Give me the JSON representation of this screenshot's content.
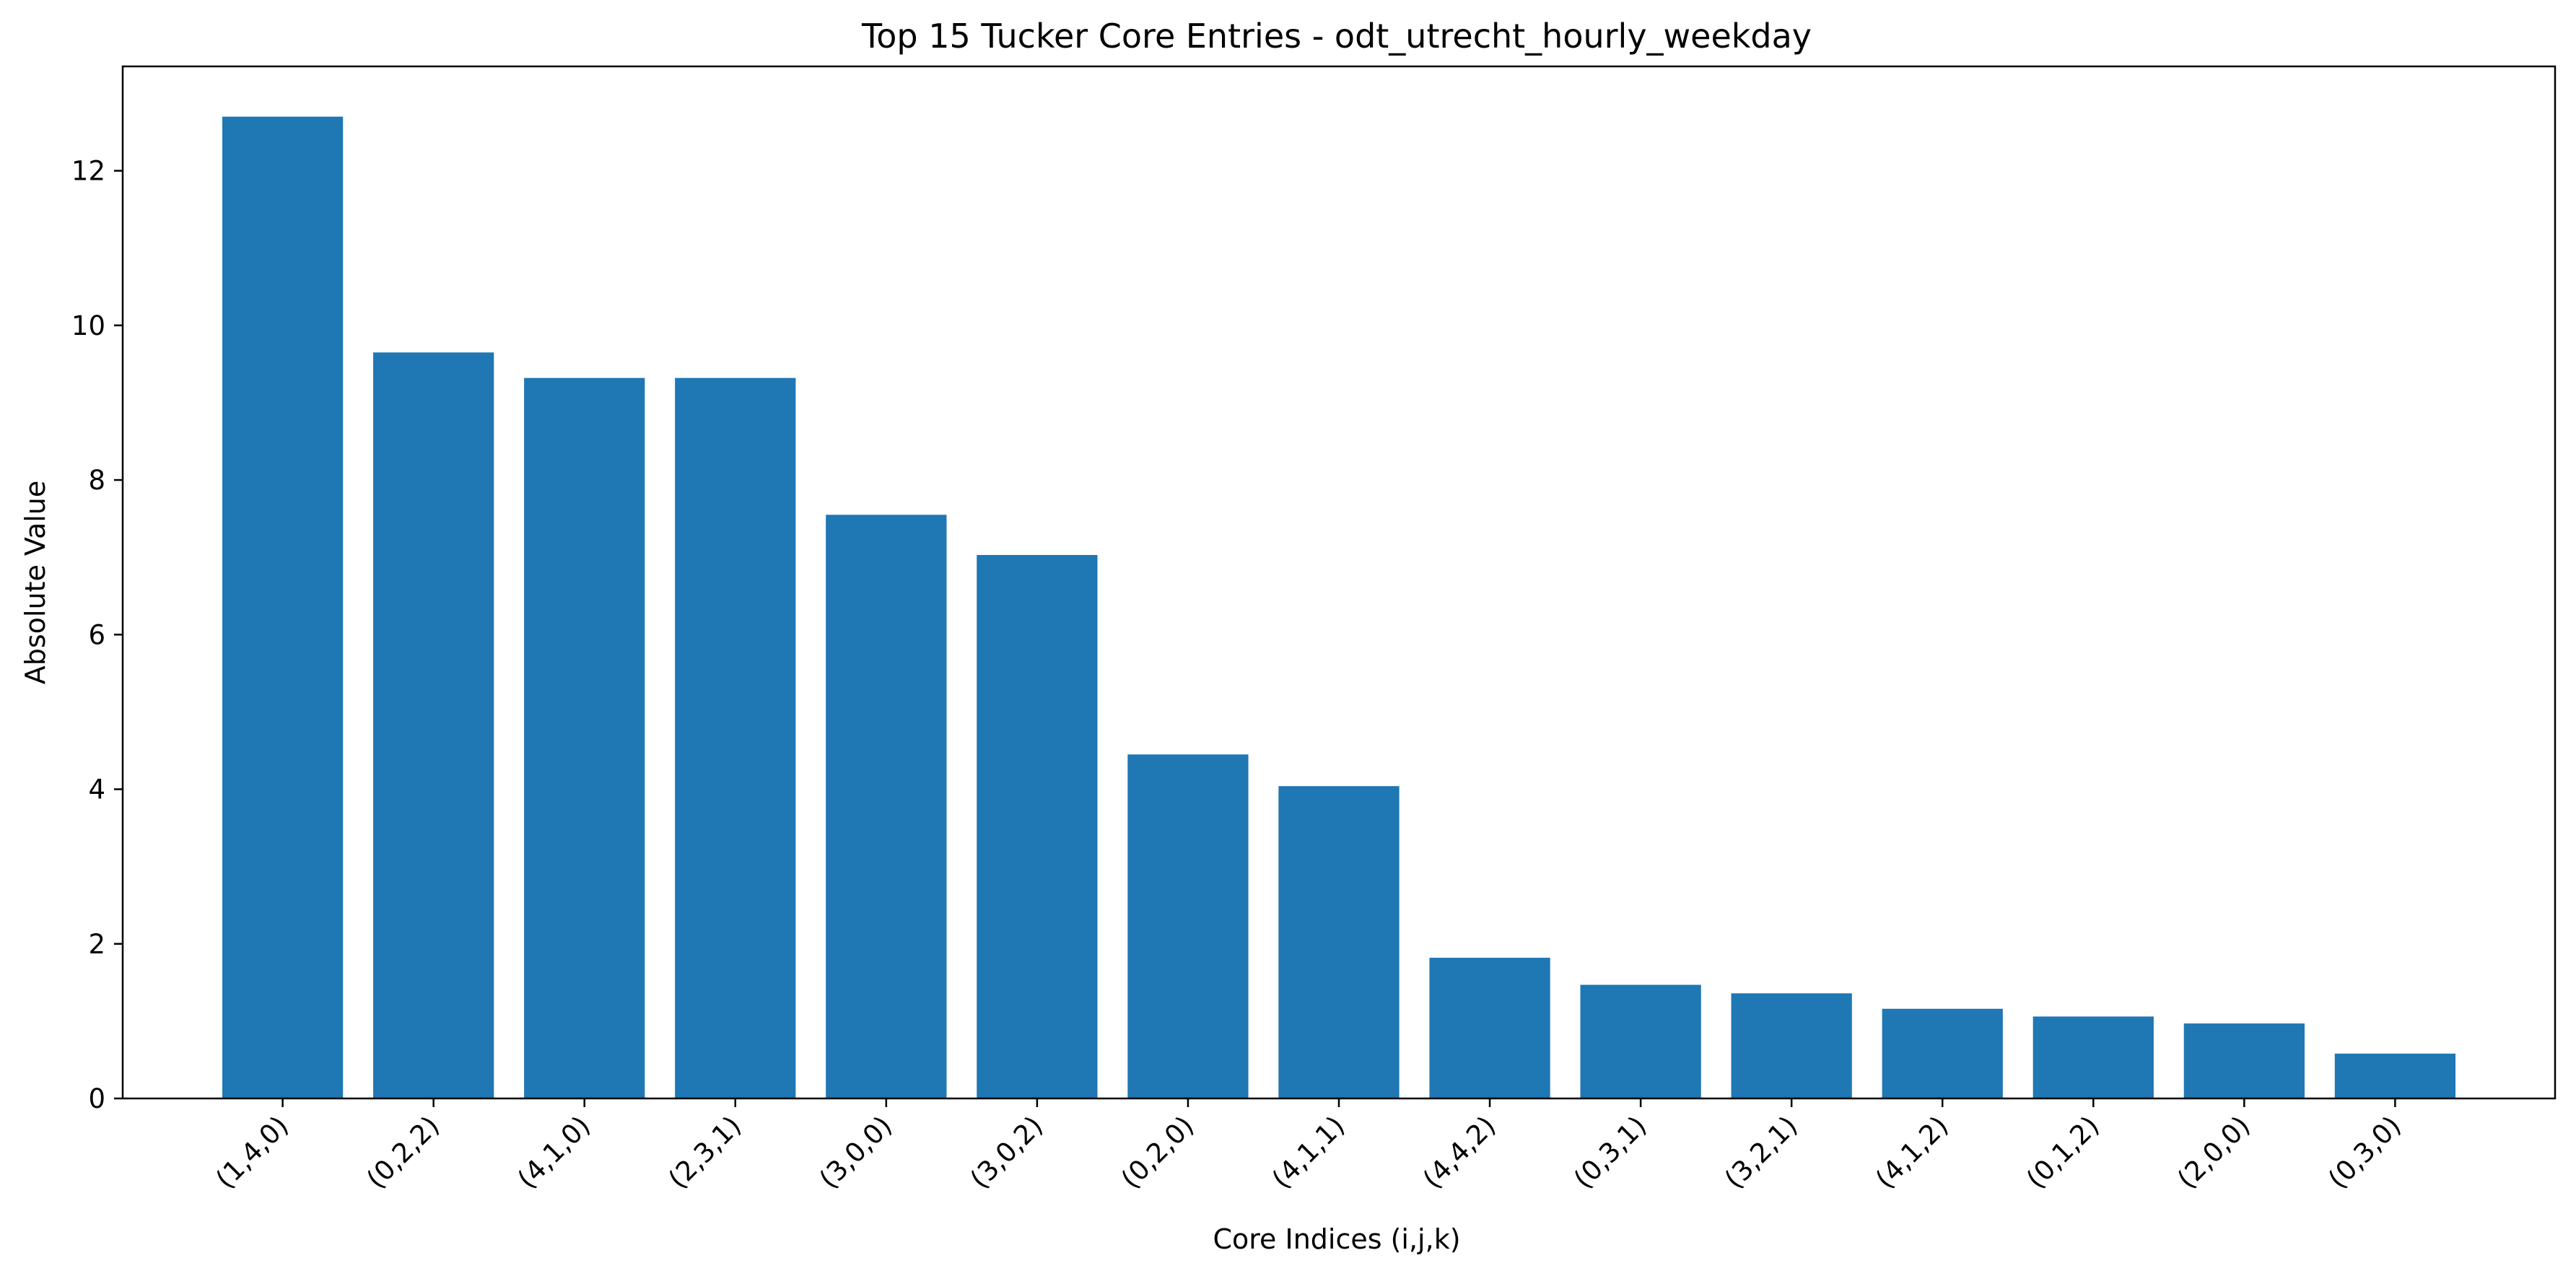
{
  "chart_data": {
    "type": "bar",
    "title": "Top 15 Tucker Core Entries - odt_utrecht_hourly_weekday",
    "xlabel": "Core Indices (i,j,k)",
    "ylabel": "Absolute Value",
    "categories": [
      "(1,4,0)",
      "(0,2,2)",
      "(4,1,0)",
      "(2,3,1)",
      "(3,0,0)",
      "(3,0,2)",
      "(0,2,0)",
      "(4,1,1)",
      "(4,4,2)",
      "(0,3,1)",
      "(3,2,1)",
      "(4,1,2)",
      "(0,1,2)",
      "(2,0,0)",
      "(0,3,0)"
    ],
    "values": [
      12.7,
      9.65,
      9.32,
      9.32,
      7.55,
      7.03,
      4.45,
      4.04,
      1.82,
      1.47,
      1.36,
      1.16,
      1.06,
      0.97,
      0.58
    ],
    "ylim": [
      0,
      13.35
    ],
    "yticks": [
      0,
      2,
      4,
      6,
      8,
      10,
      12
    ],
    "grid": false,
    "legend": "none",
    "bar_color": "#1f77b4"
  }
}
